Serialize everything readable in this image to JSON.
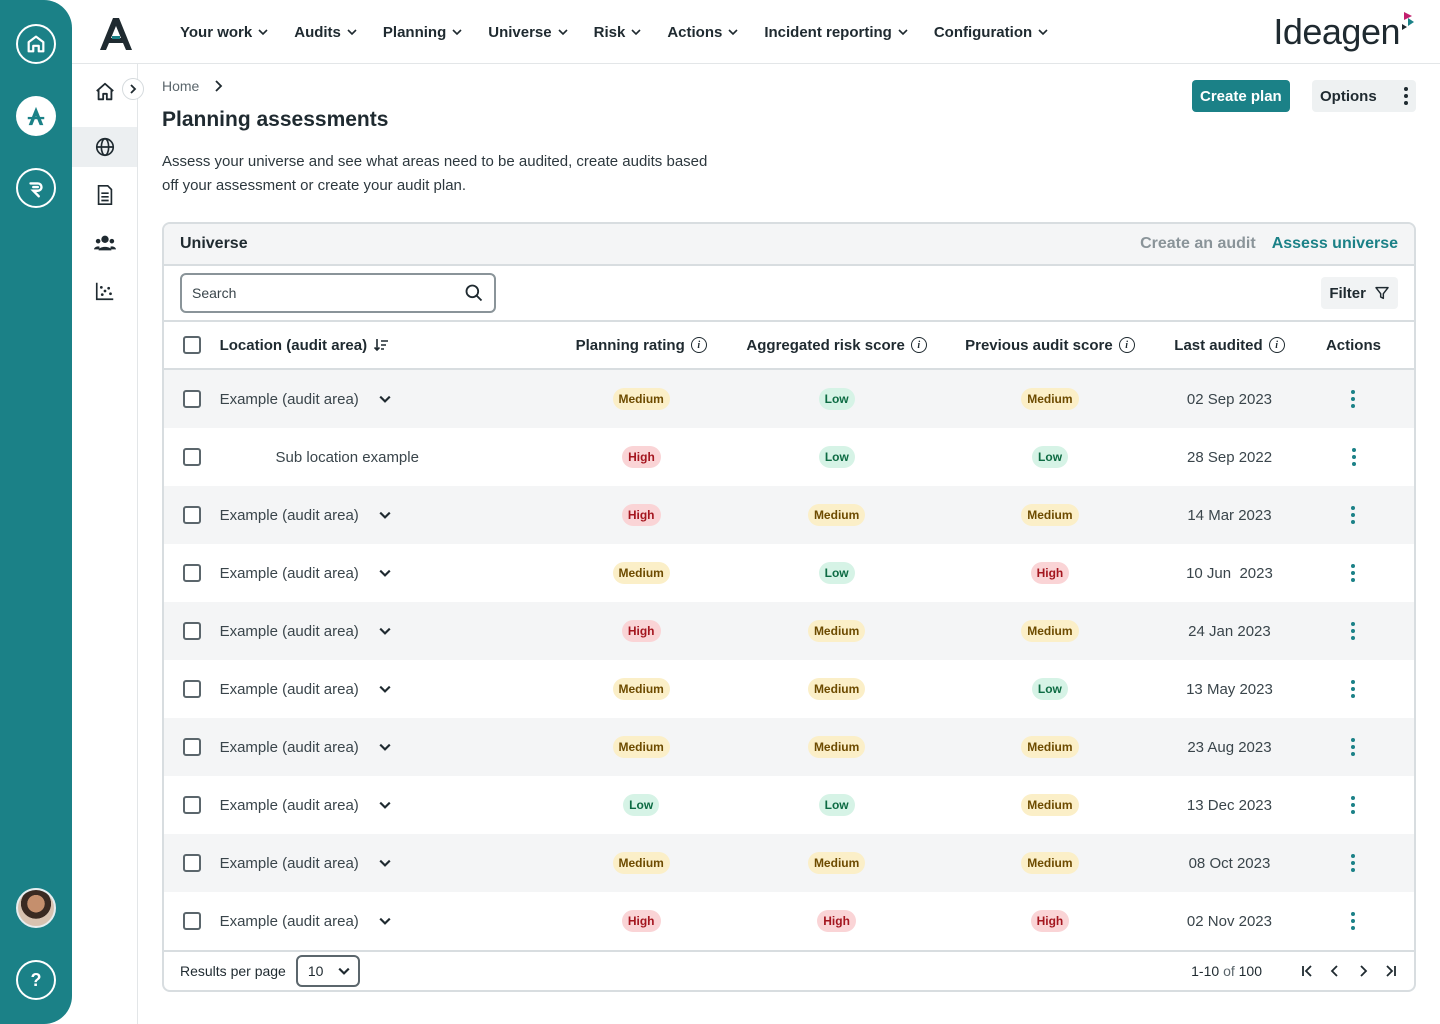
{
  "colors": {
    "accent": "#1b8187",
    "medium_bg": "#fbefc8",
    "low_bg": "#d6f3e6",
    "high_bg": "#fad4d6"
  },
  "rail": {
    "items": [
      {
        "icon": "home-icon"
      },
      {
        "icon": "audit-app-icon"
      },
      {
        "icon": "risk-app-icon"
      }
    ],
    "help_label": "?"
  },
  "sidebar": {
    "items": [
      {
        "icon": "home-icon"
      },
      {
        "icon": "globe-icon"
      },
      {
        "icon": "document-icon"
      },
      {
        "icon": "people-icon"
      },
      {
        "icon": "scatter-chart-icon"
      }
    ]
  },
  "nav": {
    "items": [
      "Your work",
      "Audits",
      "Planning",
      "Universe",
      "Risk",
      "Actions",
      "Incident reporting",
      "Configuration"
    ],
    "brand": "Ideagen"
  },
  "page": {
    "breadcrumb": "Home",
    "title": "Planning assessments",
    "description": "Assess your universe and see what areas need to be audited, create audits based off your assessment or create your audit plan.",
    "create_plan": "Create plan",
    "options": "Options"
  },
  "card": {
    "title": "Universe",
    "tab_create": "Create an audit",
    "tab_assess": "Assess universe",
    "search_placeholder": "Search",
    "filter": "Filter"
  },
  "table": {
    "headers": {
      "location": "Location (audit area)",
      "planning": "Planning rating",
      "aggregated": "Aggregated risk score",
      "previous": "Previous audit score",
      "last": "Last audited",
      "actions": "Actions"
    },
    "rows": [
      {
        "location": "Example (audit area)",
        "sub": false,
        "planning": "Medium",
        "aggregated": "Low",
        "previous": "Medium",
        "last": "02 Sep 2023"
      },
      {
        "location": "Sub location example",
        "sub": true,
        "planning": "High",
        "aggregated": "Low",
        "previous": "Low",
        "last": "28 Sep 2022"
      },
      {
        "location": "Example (audit area)",
        "sub": false,
        "planning": "High",
        "aggregated": "Medium",
        "previous": "Medium",
        "last": "14 Mar 2023"
      },
      {
        "location": "Example (audit area)",
        "sub": false,
        "planning": "Medium",
        "aggregated": "Low",
        "previous": "High",
        "last": "10 Jun  2023"
      },
      {
        "location": "Example (audit area)",
        "sub": false,
        "planning": "High",
        "aggregated": "Medium",
        "previous": "Medium",
        "last": "24 Jan 2023"
      },
      {
        "location": "Example (audit area)",
        "sub": false,
        "planning": "Medium",
        "aggregated": "Medium",
        "previous": "Low",
        "last": "13 May 2023"
      },
      {
        "location": "Example (audit area)",
        "sub": false,
        "planning": "Medium",
        "aggregated": "Medium",
        "previous": "Medium",
        "last": "23 Aug 2023"
      },
      {
        "location": "Example (audit area)",
        "sub": false,
        "planning": "Low",
        "aggregated": "Low",
        "previous": "Medium",
        "last": "13 Dec 2023"
      },
      {
        "location": "Example (audit area)",
        "sub": false,
        "planning": "Medium",
        "aggregated": "Medium",
        "previous": "Medium",
        "last": "08 Oct 2023"
      },
      {
        "location": "Example (audit area)",
        "sub": false,
        "planning": "High",
        "aggregated": "High",
        "previous": "High",
        "last": "02 Nov 2023"
      }
    ]
  },
  "footer": {
    "results_label": "Results per page",
    "per_page": "10",
    "range": "1-10",
    "of_label": "of",
    "total": "100"
  }
}
